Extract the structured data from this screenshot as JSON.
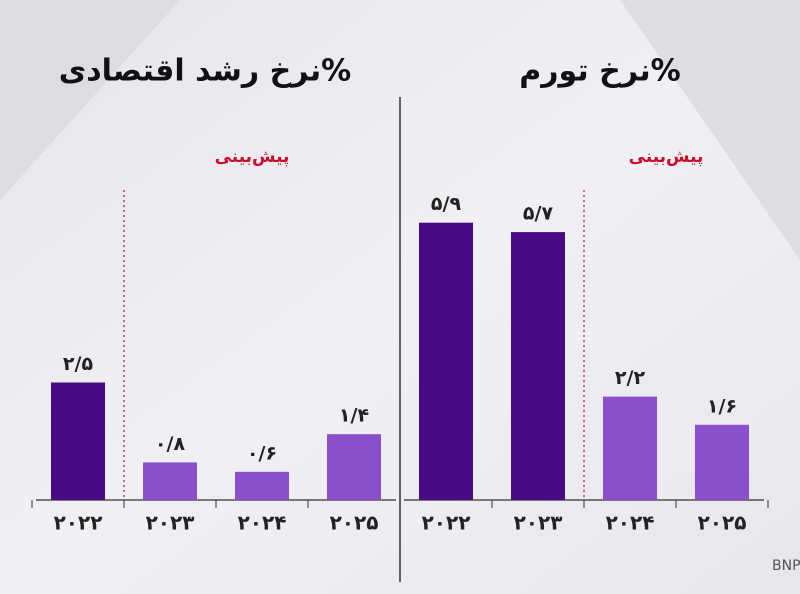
{
  "chart_data": [
    {
      "type": "bar",
      "title": "%نرخ رشد اقتصادی",
      "annotation": "پیش‌بینی",
      "categories": [
        "۲۰۲۲",
        "۲۰۲۳",
        "۲۰۲۴",
        "۲۰۲۵"
      ],
      "values": [
        2.5,
        0.8,
        0.6,
        1.4
      ],
      "value_labels": [
        "۲/۵",
        "۰/۸",
        "۰/۶",
        "۱/۴"
      ],
      "colors": [
        "#4a0a86",
        "#8c4fcc",
        "#8c4fcc",
        "#8c4fcc"
      ]
    },
    {
      "type": "bar",
      "title": "%نرخ تورم",
      "annotation": "پیش‌بینی",
      "categories": [
        "۲۰۲۲",
        "۲۰۲۳",
        "۲۰۲۴",
        "۲۰۲۵"
      ],
      "values": [
        5.9,
        5.7,
        2.2,
        1.6
      ],
      "value_labels": [
        "۵/۹",
        "۵/۷",
        "۲/۲",
        "۱/۶"
      ],
      "colors": [
        "#4a0a86",
        "#4a0a86",
        "#8c4fcc",
        "#8c4fcc"
      ]
    }
  ],
  "source": "منبع: BNP PARIBAS GLOBAL MARKETS"
}
